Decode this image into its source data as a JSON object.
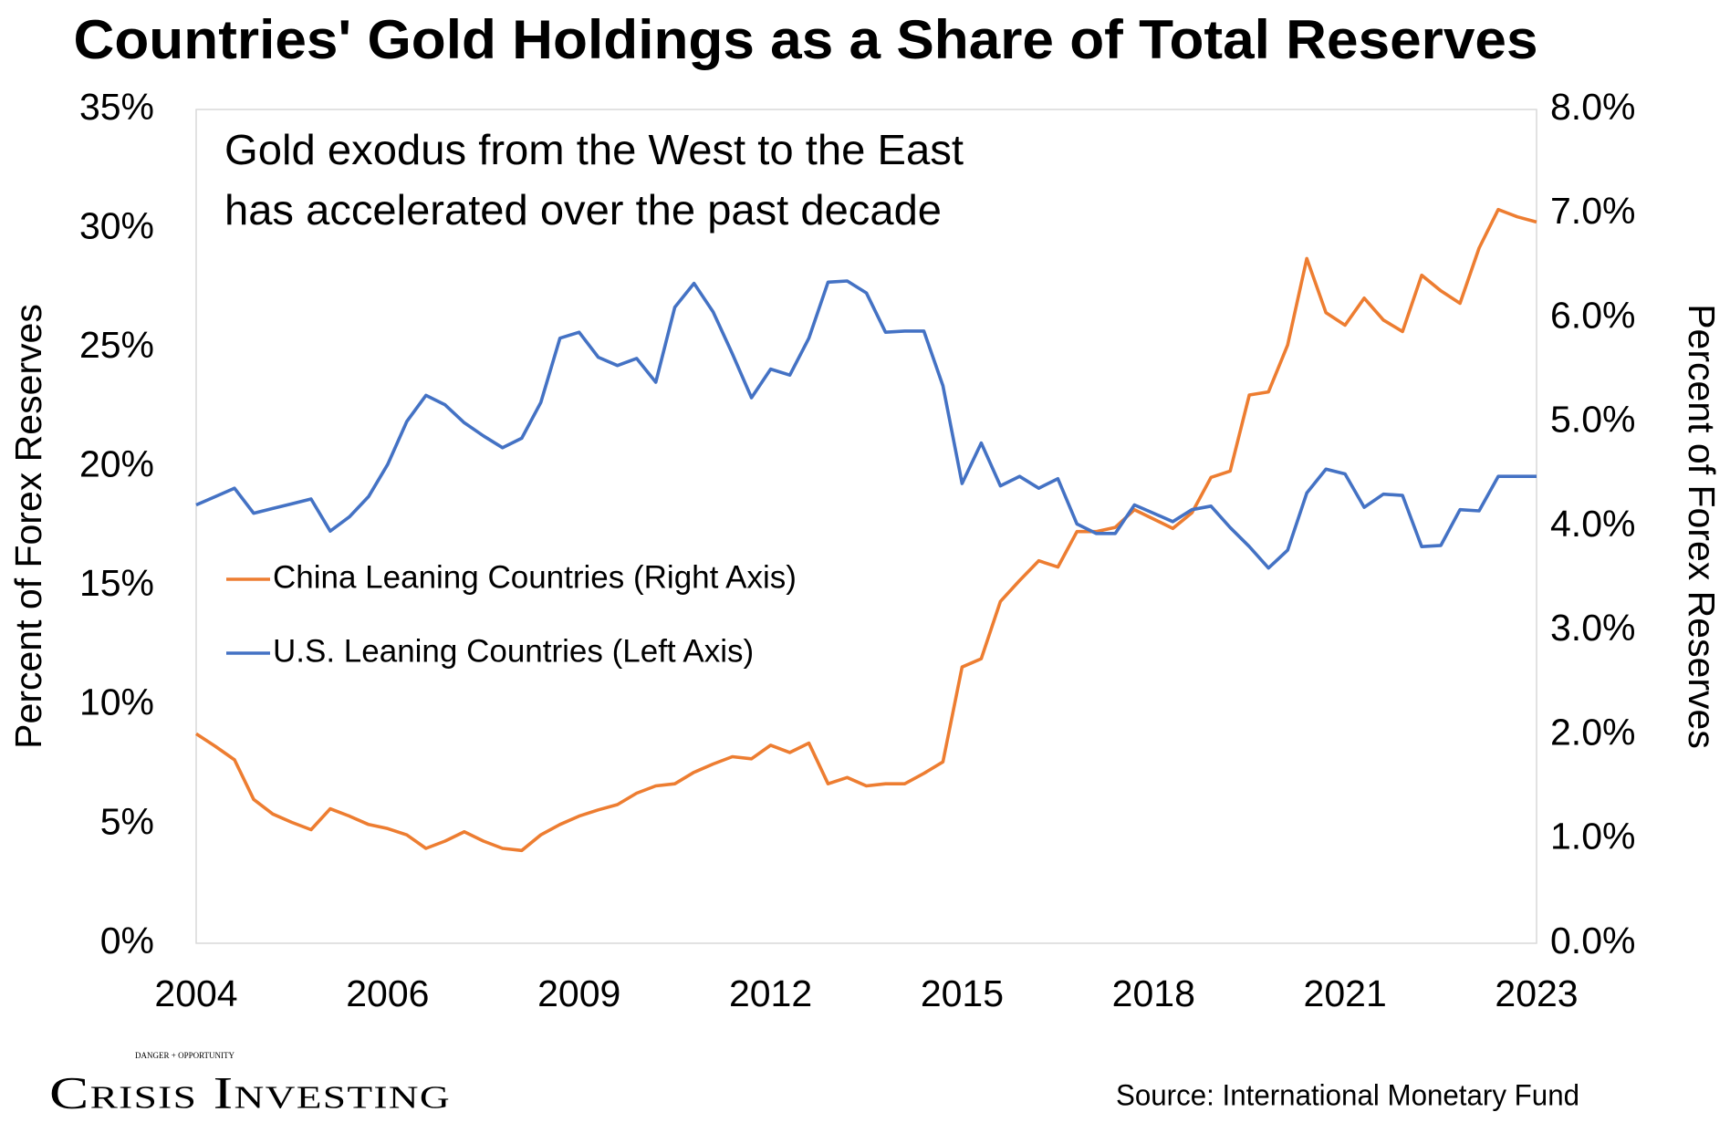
{
  "chart_data": {
    "type": "line",
    "title": "Countries' Gold Holdings as a Share of Total Reserves",
    "annotation": [
      "Gold exodus from the West to the East",
      "has accelerated over the past decade"
    ],
    "y_label": "Percent of Forex Reserves",
    "y2_label": "Percent of Forex Reserves",
    "source": "Source: International Monetary Fund",
    "brand": "Crisis Investing",
    "brand_tagline": "DANGER + OPPORTUNITY",
    "categories": [
      "2004",
      null,
      null,
      null,
      null,
      null,
      null,
      null,
      null,
      null,
      "2006",
      null,
      null,
      null,
      null,
      null,
      null,
      null,
      null,
      null,
      "2009",
      null,
      null,
      null,
      null,
      null,
      null,
      null,
      null,
      null,
      "2012",
      null,
      null,
      null,
      null,
      null,
      null,
      null,
      null,
      null,
      "2015",
      null,
      null,
      null,
      null,
      null,
      null,
      null,
      null,
      null,
      "2018",
      null,
      null,
      null,
      null,
      null,
      null,
      null,
      null,
      null,
      "2021",
      null,
      null,
      null,
      null,
      null,
      null,
      null,
      null,
      null,
      "2023"
    ],
    "series": [
      {
        "name": "China Leaning Countries (Right Axis)",
        "color": "#ed7d31",
        "axis": "y2",
        "values": [
          2.01,
          1.89,
          1.76,
          1.38,
          1.24,
          1.16,
          1.09,
          1.29,
          1.22,
          1.14,
          1.1,
          1.04,
          0.91,
          0.98,
          1.07,
          0.98,
          0.91,
          0.89,
          1.04,
          1.14,
          1.22,
          1.28,
          1.33,
          1.44,
          1.51,
          1.53,
          1.64,
          1.72,
          1.79,
          1.77,
          1.9,
          1.83,
          1.92,
          1.53,
          1.59,
          1.51,
          1.53,
          1.53,
          1.63,
          1.74,
          2.65,
          2.73,
          3.28,
          3.48,
          3.67,
          3.61,
          3.95,
          3.95,
          3.99,
          4.16,
          4.07,
          3.98,
          4.13,
          4.47,
          4.53,
          5.26,
          5.29,
          5.74,
          6.57,
          6.05,
          5.93,
          6.19,
          5.98,
          5.87,
          6.41,
          6.26,
          6.14,
          6.67,
          7.04,
          6.97,
          6.92
        ]
      },
      {
        "name": "U.S. Leaning Countries (Left Axis)",
        "color": "#4472c4",
        "axis": "y",
        "values": [
          18.4,
          18.75,
          19.1,
          18.05,
          18.25,
          18.45,
          18.65,
          17.3,
          17.9,
          18.75,
          20.1,
          21.9,
          23.0,
          22.6,
          21.85,
          21.3,
          20.8,
          21.2,
          22.7,
          25.4,
          25.65,
          24.6,
          24.25,
          24.55,
          23.55,
          26.7,
          27.7,
          26.5,
          24.75,
          22.9,
          24.1,
          23.85,
          25.4,
          27.75,
          27.8,
          27.3,
          25.65,
          25.7,
          25.7,
          23.4,
          19.3,
          21.0,
          19.2,
          19.6,
          19.1,
          19.5,
          17.6,
          17.2,
          17.2,
          18.4,
          18.05,
          17.7,
          18.2,
          18.35,
          17.45,
          16.65,
          15.75,
          16.5,
          18.9,
          19.9,
          19.7,
          18.3,
          18.85,
          18.8,
          16.65,
          16.7,
          18.2,
          18.15,
          19.6,
          19.6,
          19.6
        ]
      }
    ],
    "ylim": [
      0,
      35
    ],
    "yticks": [
      {
        "value": 0,
        "label": "0%"
      },
      {
        "value": 5,
        "label": "5%"
      },
      {
        "value": 10,
        "label": "10%"
      },
      {
        "value": 15,
        "label": "15%"
      },
      {
        "value": 20,
        "label": "20%"
      },
      {
        "value": 25,
        "label": "25%"
      },
      {
        "value": 30,
        "label": "30%"
      },
      {
        "value": 35,
        "label": "35%"
      }
    ],
    "y2lim": [
      0,
      8
    ],
    "y2ticks": [
      {
        "value": 0,
        "label": "0.0%"
      },
      {
        "value": 1,
        "label": "1.0%"
      },
      {
        "value": 2,
        "label": "2.0%"
      },
      {
        "value": 3,
        "label": "3.0%"
      },
      {
        "value": 4,
        "label": "4.0%"
      },
      {
        "value": 5,
        "label": "5.0%"
      },
      {
        "value": 6,
        "label": "6.0%"
      },
      {
        "value": 7,
        "label": "7.0%"
      },
      {
        "value": 8,
        "label": "8.0%"
      }
    ],
    "grid": false
  }
}
